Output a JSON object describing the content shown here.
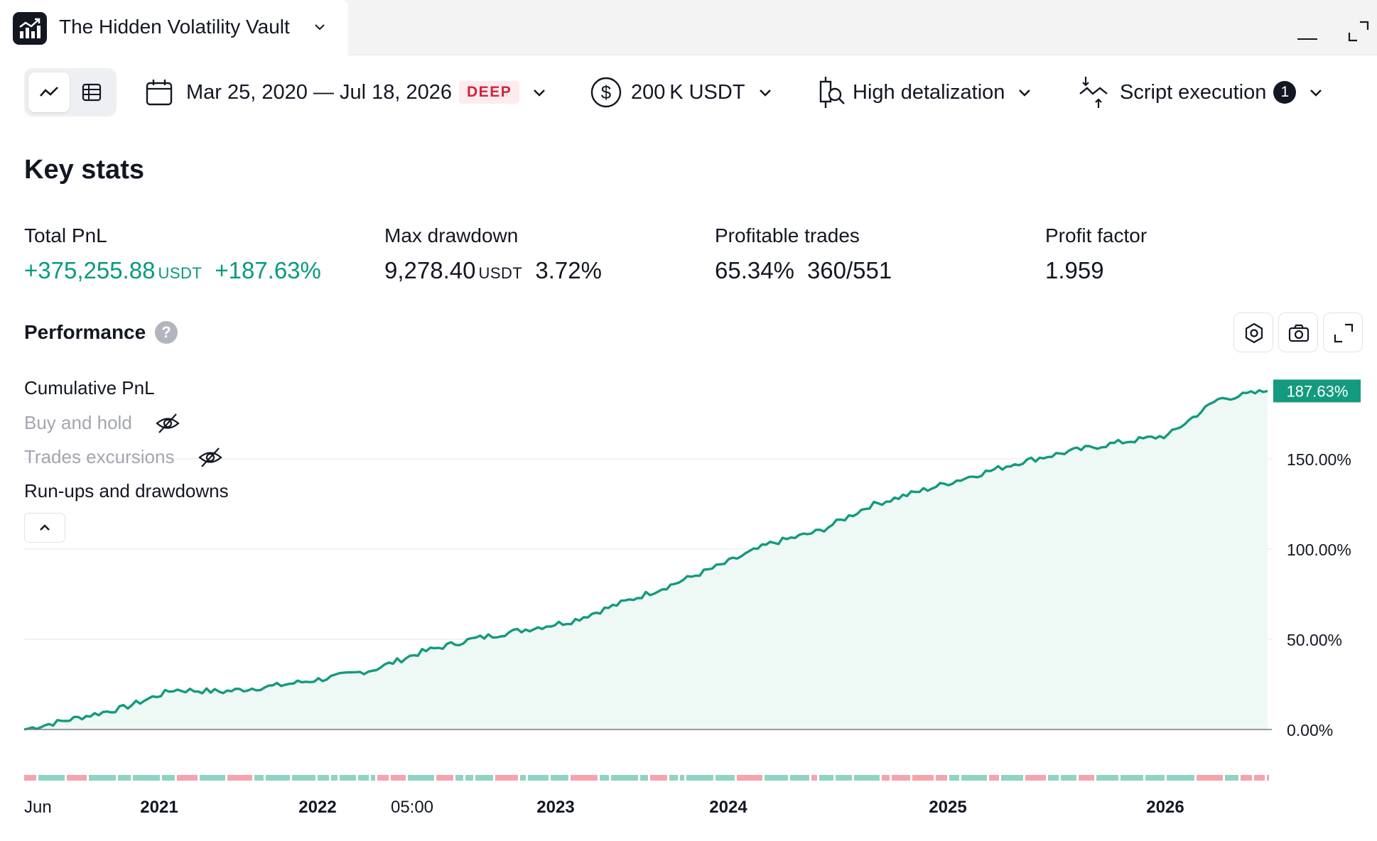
{
  "window": {
    "tab_title": "The Hidden Volatility Vault",
    "icons": [
      "app-chart-logo-icon",
      "chevron-down-icon",
      "minimize-icon",
      "maximize-icon"
    ]
  },
  "toolbar": {
    "view_modes": [
      "chart",
      "table"
    ],
    "active_view": "chart",
    "date_range": "Mar 25, 2020 — Jul 18, 2026",
    "date_badge": "DEEP",
    "capital": "200 K USDT",
    "detalization": "High detalization",
    "script_execution": "Script execution",
    "script_execution_count": "1"
  },
  "key_stats": {
    "title": "Key stats",
    "total_pnl": {
      "label": "Total PnL",
      "value": "+375,255.88",
      "unit": "USDT",
      "percent": "+187.63%"
    },
    "max_drawdown": {
      "label": "Max drawdown",
      "value": "9,278.40",
      "unit": "USDT",
      "percent": "3.72%"
    },
    "profitable_trades": {
      "label": "Profitable trades",
      "percent": "65.34%",
      "ratio": "360/551"
    },
    "profit_factor": {
      "label": "Profit factor",
      "value": "1.959"
    }
  },
  "performance": {
    "title": "Performance",
    "help": "?",
    "legend": {
      "cumulative": "Cumulative PnL",
      "buy_hold": "Buy and hold",
      "trade_excursions": "Trades excursions",
      "runups": "Run-ups and drawdowns"
    },
    "colors": {
      "line": "#149a7e",
      "fill": "#eef8f5",
      "profit": "#8fd3c2",
      "loss": "#f5a3ad",
      "badge": "#149a7e"
    }
  },
  "chart_data": {
    "type": "area",
    "title": "",
    "series": [
      {
        "name": "Cumulative PnL",
        "unit": "%"
      }
    ],
    "x_tick_labels": [
      "Jun",
      "2021",
      "2022",
      "05:00",
      "2023",
      "2024",
      "2025",
      "2026"
    ],
    "y_ticks": [
      0,
      50,
      100,
      150
    ],
    "y_tick_labels": [
      "0.00%",
      "50.00%",
      "100.00%",
      "150.00%"
    ],
    "ylim": [
      0,
      187.63
    ],
    "last_value_label": "187.63%",
    "x": [
      "2020-03",
      "2020-06",
      "2020-09",
      "2020-12",
      "2021-03",
      "2021-06",
      "2021-09",
      "2021-12",
      "2022-03",
      "2022-06",
      "2022-09",
      "2022-12",
      "2023-03",
      "2023-06",
      "2023-09",
      "2023-12",
      "2024-03",
      "2024-06",
      "2024-09",
      "2024-12",
      "2025-03",
      "2025-06",
      "2025-09",
      "2025-12",
      "2026-03",
      "2026-07"
    ],
    "y": [
      0,
      6,
      12,
      22,
      21,
      24,
      28,
      33,
      43,
      50,
      55,
      60,
      70,
      80,
      91,
      103,
      110,
      124,
      132,
      140,
      148,
      154,
      159,
      163,
      183,
      187.63
    ]
  }
}
